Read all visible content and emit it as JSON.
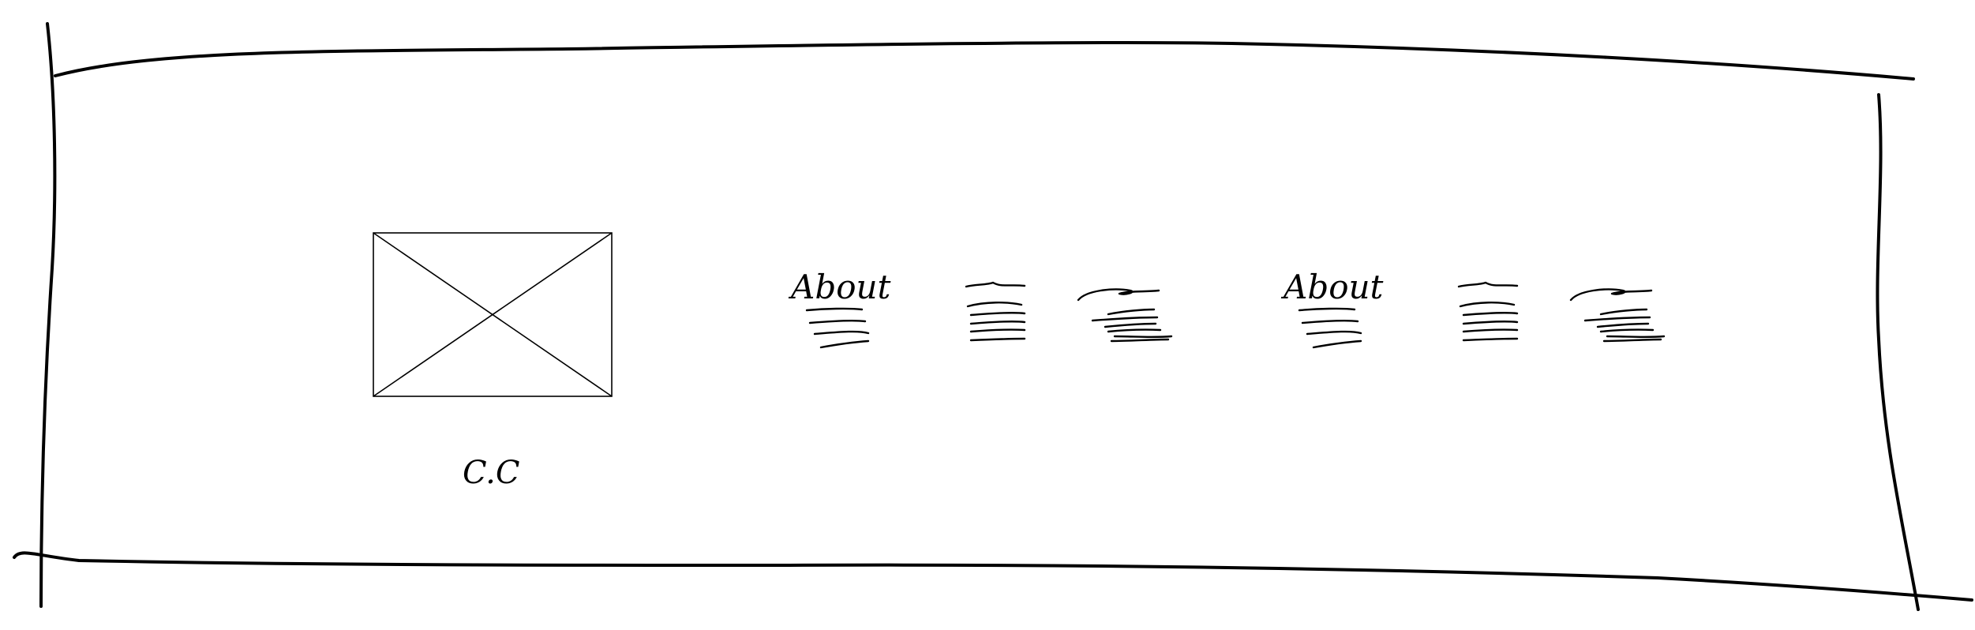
{
  "wireframe": {
    "image_placeholder": {
      "caption": "C.C"
    },
    "nav_groups": [
      {
        "title": "About",
        "link_columns": 3
      },
      {
        "title": "About",
        "link_columns": 3
      }
    ],
    "colors": {
      "ink": "#000000",
      "paper": "#ffffff"
    }
  }
}
